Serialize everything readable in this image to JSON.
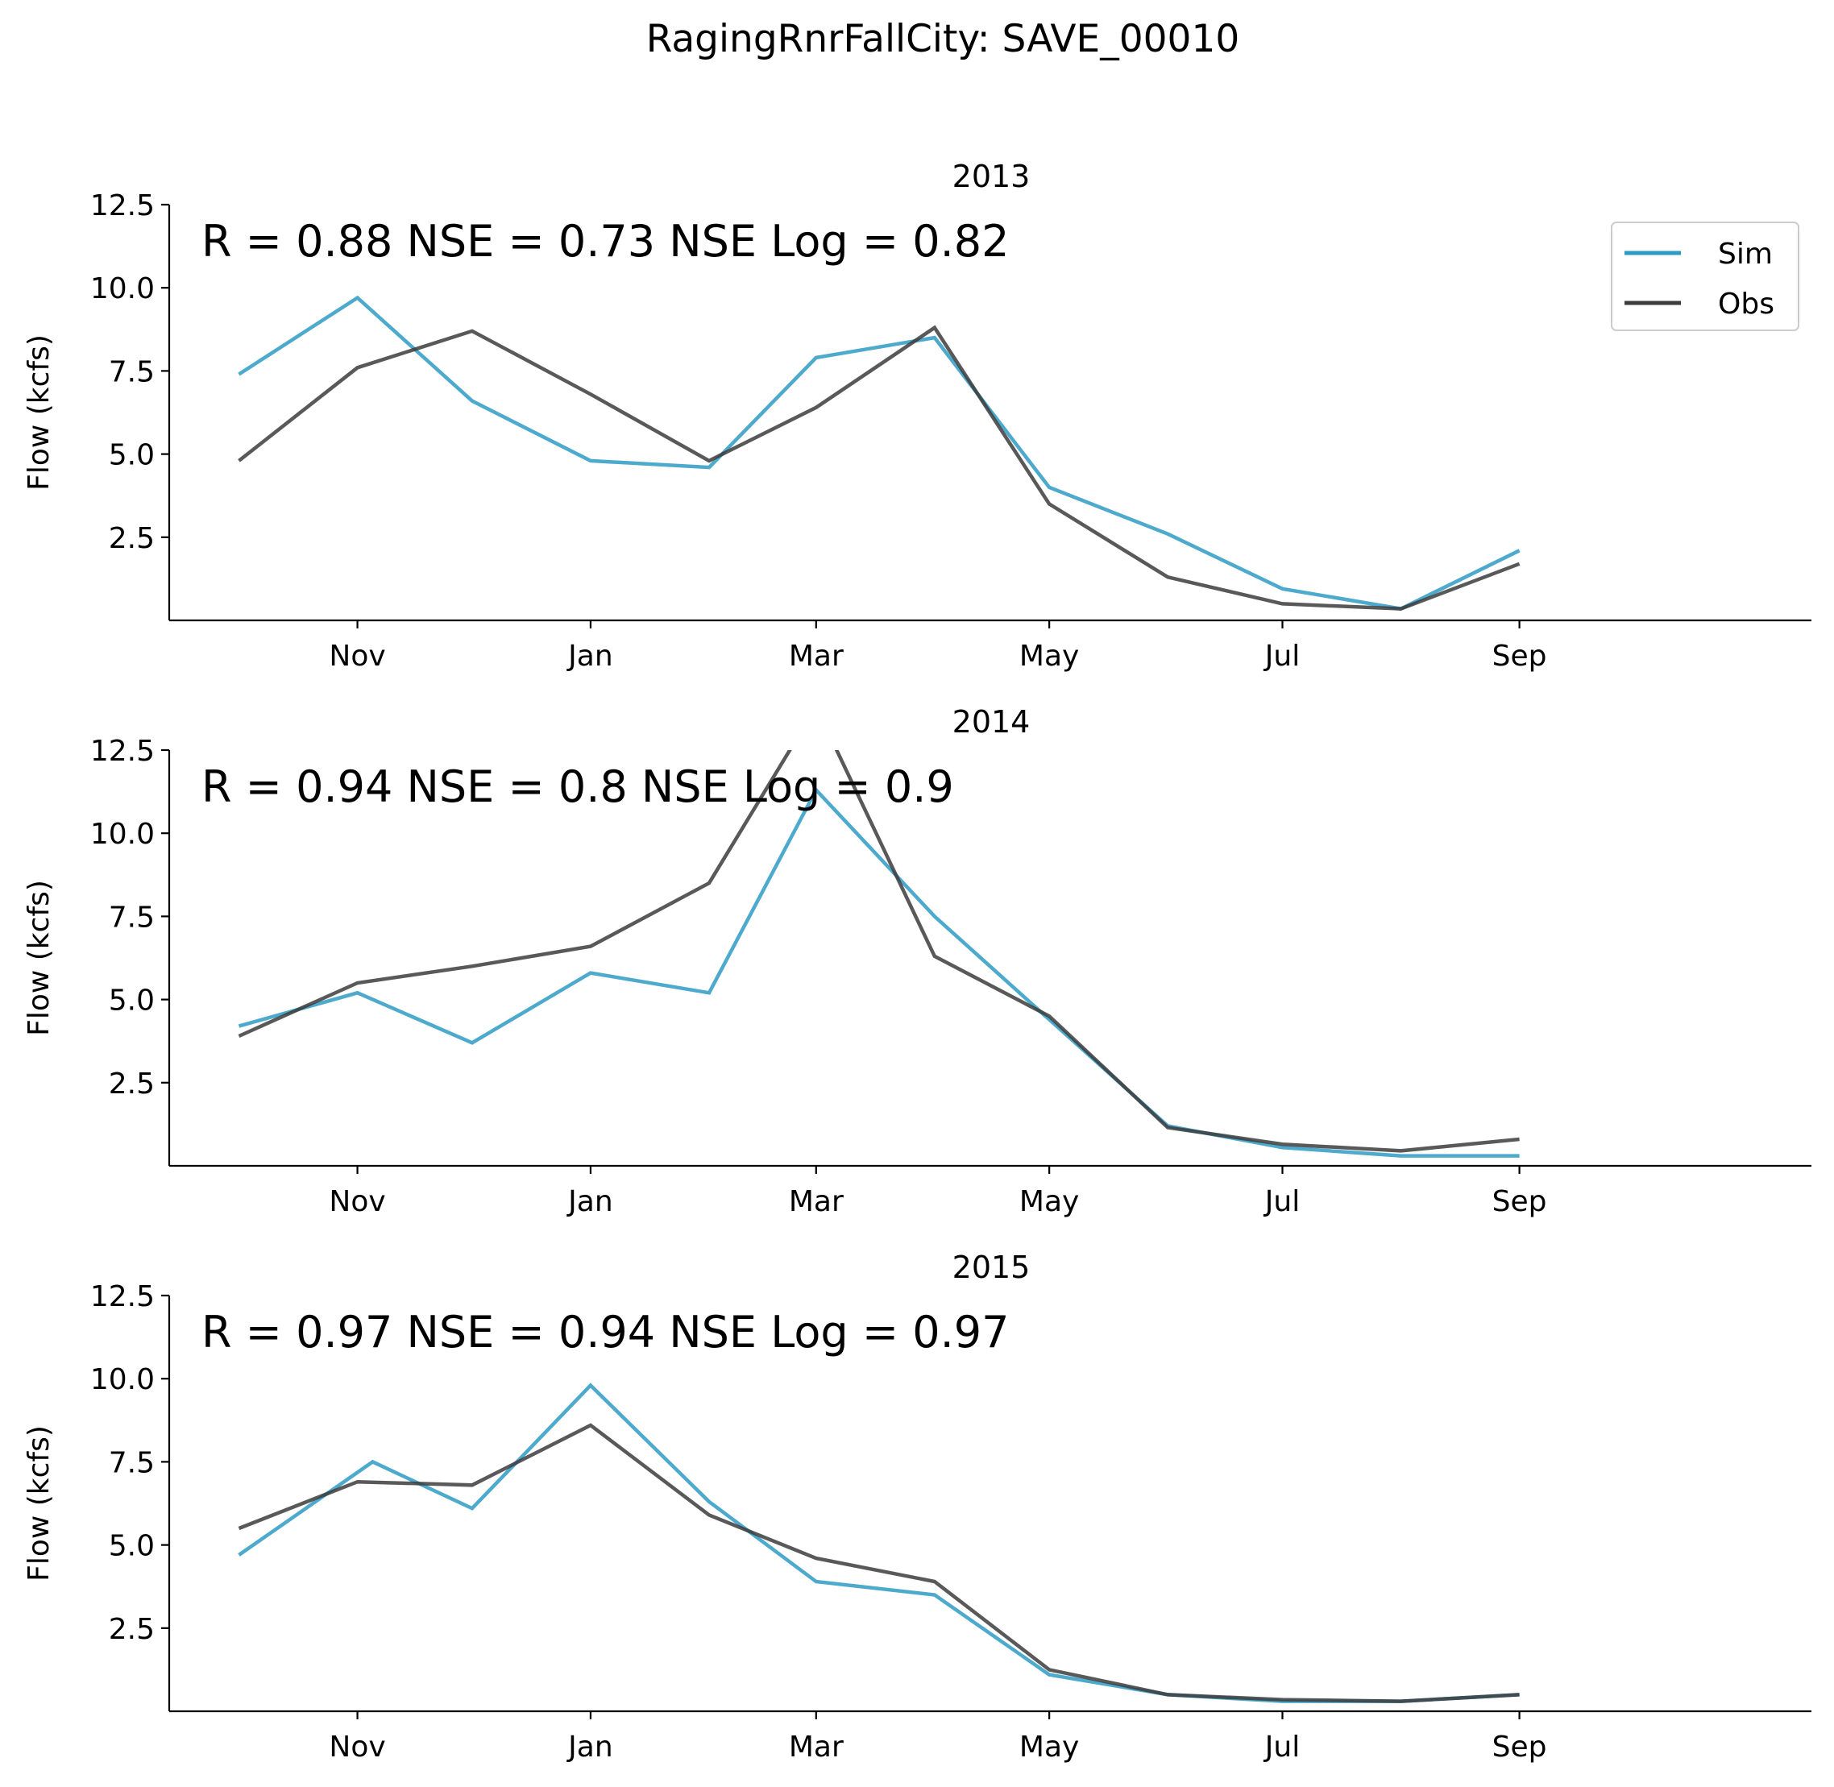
{
  "figure_title": "RagingRnrFallCity: SAVE_00010",
  "colors": {
    "sim": "#2e9bc4",
    "obs": "#3c3c3c",
    "background": "#ffffff"
  },
  "legend": {
    "placement": "upper-right",
    "entries": [
      "Sim",
      "Obs"
    ]
  },
  "chart_data": [
    {
      "type": "line",
      "title": "2013",
      "stats_text": "R = 0.88  NSE = 0.73  NSE Log = 0.82",
      "ylabel": "Flow (kcfs)",
      "xlabel": "",
      "x_tick_labels": [
        "Nov",
        "Jan",
        "Mar",
        "May",
        "Jul",
        "Sep"
      ],
      "y_tick_labels": [
        "2.5",
        "5.0",
        "7.5",
        "10.0",
        "12.5"
      ],
      "y_ticks": [
        2.5,
        5.0,
        7.5,
        10.0,
        12.5
      ],
      "ylim": [
        0,
        12.5
      ],
      "show_legend": true,
      "series": [
        {
          "name": "Sim",
          "x": [
            "2012-10-01",
            "2012-11-01",
            "2012-12-01",
            "2013-01-01",
            "2013-02-01",
            "2013-03-01",
            "2013-04-01",
            "2013-05-01",
            "2013-06-01",
            "2013-07-01",
            "2013-08-01",
            "2013-09-01"
          ],
          "values": [
            7.4,
            9.7,
            6.6,
            4.8,
            4.6,
            7.9,
            8.5,
            4.0,
            2.6,
            0.95,
            0.35,
            2.1
          ]
        },
        {
          "name": "Obs",
          "x": [
            "2012-10-01",
            "2012-11-01",
            "2012-12-01",
            "2013-01-01",
            "2013-02-01",
            "2013-03-01",
            "2013-04-01",
            "2013-05-01",
            "2013-06-01",
            "2013-07-01",
            "2013-08-01",
            "2013-09-01"
          ],
          "values": [
            4.8,
            7.6,
            8.7,
            6.8,
            4.8,
            6.4,
            8.8,
            3.5,
            1.3,
            0.5,
            0.35,
            1.7
          ]
        }
      ]
    },
    {
      "type": "line",
      "title": "2014",
      "stats_text": "R = 0.94  NSE = 0.8  NSE Log = 0.9",
      "ylabel": "Flow (kcfs)",
      "xlabel": "",
      "x_tick_labels": [
        "Nov",
        "Jan",
        "Mar",
        "May",
        "Jul",
        "Sep"
      ],
      "y_tick_labels": [
        "2.5",
        "5.0",
        "7.5",
        "10.0",
        "12.5"
      ],
      "y_ticks": [
        2.5,
        5.0,
        7.5,
        10.0,
        12.5
      ],
      "ylim": [
        0,
        12.5
      ],
      "show_legend": false,
      "series": [
        {
          "name": "Sim",
          "x": [
            "2013-10-01",
            "2013-11-01",
            "2013-12-01",
            "2014-01-01",
            "2014-02-01",
            "2014-03-01",
            "2014-04-01",
            "2014-05-01",
            "2014-06-01",
            "2014-07-01",
            "2014-08-01",
            "2014-09-01"
          ],
          "values": [
            4.2,
            5.2,
            3.7,
            5.8,
            5.2,
            11.3,
            7.5,
            4.4,
            1.2,
            0.55,
            0.3,
            0.3
          ]
        },
        {
          "name": "Obs",
          "x": [
            "2013-10-01",
            "2013-11-01",
            "2013-12-01",
            "2014-01-01",
            "2014-02-01",
            "2014-03-01",
            "2014-04-01",
            "2014-05-01",
            "2014-06-01",
            "2014-07-01",
            "2014-08-01",
            "2014-09-01"
          ],
          "values": [
            3.9,
            5.5,
            6.0,
            6.6,
            8.5,
            13.8,
            6.3,
            4.5,
            1.15,
            0.65,
            0.45,
            0.8
          ]
        }
      ]
    },
    {
      "type": "line",
      "title": "2015",
      "stats_text": "R = 0.97  NSE = 0.94  NSE Log = 0.97",
      "ylabel": "Flow (kcfs)",
      "xlabel": "",
      "x_tick_labels": [
        "Nov",
        "Jan",
        "Mar",
        "May",
        "Jul",
        "Sep"
      ],
      "y_tick_labels": [
        "2.5",
        "5.0",
        "7.5",
        "10.0",
        "12.5"
      ],
      "y_ticks": [
        2.5,
        5.0,
        7.5,
        10.0,
        12.5
      ],
      "ylim": [
        0,
        12.5
      ],
      "show_legend": false,
      "series": [
        {
          "name": "Sim",
          "x": [
            "2014-10-01",
            "2014-11-05",
            "2014-12-01",
            "2015-01-01",
            "2015-02-01",
            "2015-03-01",
            "2015-04-01",
            "2015-05-01",
            "2015-06-01",
            "2015-07-01",
            "2015-08-01",
            "2015-09-01"
          ],
          "values": [
            4.7,
            7.5,
            6.1,
            9.8,
            6.3,
            3.9,
            3.5,
            1.1,
            0.5,
            0.3,
            0.3,
            0.5
          ]
        },
        {
          "name": "Obs",
          "x": [
            "2014-10-01",
            "2014-11-01",
            "2014-12-01",
            "2015-01-01",
            "2015-02-01",
            "2015-03-01",
            "2015-04-01",
            "2015-05-01",
            "2015-06-01",
            "2015-07-01",
            "2015-08-01",
            "2015-09-01"
          ],
          "values": [
            5.5,
            6.9,
            6.8,
            8.6,
            5.9,
            4.6,
            3.9,
            1.25,
            0.5,
            0.35,
            0.3,
            0.5
          ]
        }
      ]
    }
  ]
}
